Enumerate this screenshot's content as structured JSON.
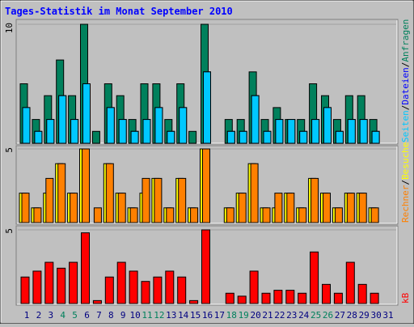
{
  "title": "Tages-Statistik im Monat September 2010",
  "legend_separator": "/",
  "chart_data": [
    {
      "type": "bar",
      "ylim": [
        0,
        10
      ],
      "yticks": [
        10
      ],
      "series": [
        {
          "name": "Seiten",
          "color": "#00c8ff",
          "values": [
            3,
            1,
            2,
            4,
            2,
            5,
            0,
            3,
            2,
            1,
            2,
            3,
            1,
            3,
            0,
            6,
            0,
            1,
            1,
            4,
            1,
            2,
            2,
            1,
            2,
            3,
            1,
            2,
            2,
            1,
            0
          ]
        },
        {
          "name": "Dateien",
          "color": "#0000ff",
          "values": [
            3,
            1,
            2,
            4,
            2,
            5,
            0,
            3,
            2,
            1,
            2,
            3,
            1,
            3,
            0,
            6,
            0,
            1,
            1,
            4,
            1,
            2,
            2,
            1,
            2,
            3,
            1,
            2,
            2,
            1,
            0
          ]
        },
        {
          "name": "Anfragen",
          "color": "#00805c",
          "values": [
            5,
            2,
            4,
            7,
            4,
            10,
            1,
            5,
            4,
            2,
            5,
            5,
            2,
            5,
            1,
            10,
            0,
            2,
            2,
            6,
            2,
            3,
            2,
            2,
            5,
            4,
            2,
            4,
            4,
            2,
            0
          ]
        }
      ]
    },
    {
      "type": "bar",
      "ylim": [
        0,
        5
      ],
      "yticks": [
        5
      ],
      "series": [
        {
          "name": "Rechner",
          "color": "#ff8000",
          "values": [
            2,
            1,
            3,
            4,
            2,
            5,
            1,
            4,
            2,
            1,
            3,
            3,
            1,
            3,
            1,
            5,
            0,
            1,
            2,
            4,
            1,
            2,
            2,
            1,
            3,
            2,
            1,
            2,
            2,
            1,
            0
          ]
        },
        {
          "name": "Besuche",
          "color": "#ffff00",
          "values": [
            2,
            1,
            2,
            4,
            2,
            5,
            0,
            4,
            2,
            1,
            2,
            3,
            1,
            3,
            1,
            5,
            0,
            1,
            2,
            4,
            1,
            1,
            2,
            1,
            3,
            2,
            1,
            2,
            2,
            1,
            0
          ]
        }
      ]
    },
    {
      "type": "bar",
      "ylim": [
        0,
        5
      ],
      "yticks": [
        5
      ],
      "categories": [
        "1",
        "2",
        "3",
        "4",
        "5",
        "6",
        "7",
        "8",
        "9",
        "10",
        "11",
        "12",
        "13",
        "14",
        "15",
        "16",
        "17",
        "18",
        "19",
        "20",
        "21",
        "22",
        "23",
        "24",
        "25",
        "26",
        "27",
        "28",
        "29",
        "30",
        "31"
      ],
      "category_colors": [
        "#000080",
        "#000080",
        "#000080",
        "#00805c",
        "#00805c",
        "#000080",
        "#000080",
        "#000080",
        "#000080",
        "#000080",
        "#00805c",
        "#00805c",
        "#000080",
        "#000080",
        "#000080",
        "#000080",
        "#000080",
        "#00805c",
        "#00805c",
        "#000080",
        "#000080",
        "#000080",
        "#000080",
        "#000080",
        "#00805c",
        "#00805c",
        "#000080",
        "#000080",
        "#000080",
        "#000080",
        "#000080"
      ],
      "series": [
        {
          "name": "kB",
          "color": "#ff0000",
          "values": [
            1.8,
            2.2,
            2.8,
            2.4,
            2.8,
            4.8,
            0.2,
            1.8,
            2.8,
            2.2,
            1.5,
            1.8,
            2.2,
            1.8,
            0.2,
            5.0,
            0,
            0.7,
            0.5,
            2.2,
            0.7,
            0.9,
            0.9,
            0.7,
            3.5,
            1.3,
            0.7,
            2.8,
            1.3,
            0.7,
            0
          ]
        }
      ]
    }
  ]
}
